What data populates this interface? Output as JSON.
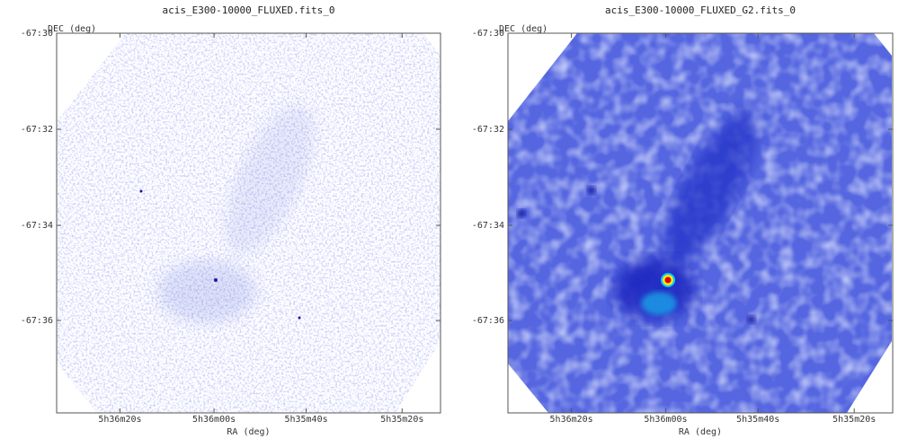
{
  "panels": [
    {
      "title": "acis_E300-10000_FLUXED.fits_0",
      "y_label": "DEC (deg)",
      "x_label": "RA (deg)",
      "y_ticks": [
        "-67:30",
        "-67:32",
        "-67:34",
        "-67:36"
      ],
      "x_ticks": [
        "5h36m20s",
        "5h36m00s",
        "5h35m40s",
        "5h35m20s"
      ]
    },
    {
      "title": "acis_E300-10000_FLUXED_G2.fits_0",
      "y_label": "DEC (deg)",
      "x_label": "RA (deg)",
      "y_ticks": [
        "-67:30",
        "-67:32",
        "-67:34",
        "-67:36"
      ],
      "x_ticks": [
        "5h36m20s",
        "5h36m00s",
        "5h35m40s",
        "5h35m20s"
      ]
    }
  ]
}
